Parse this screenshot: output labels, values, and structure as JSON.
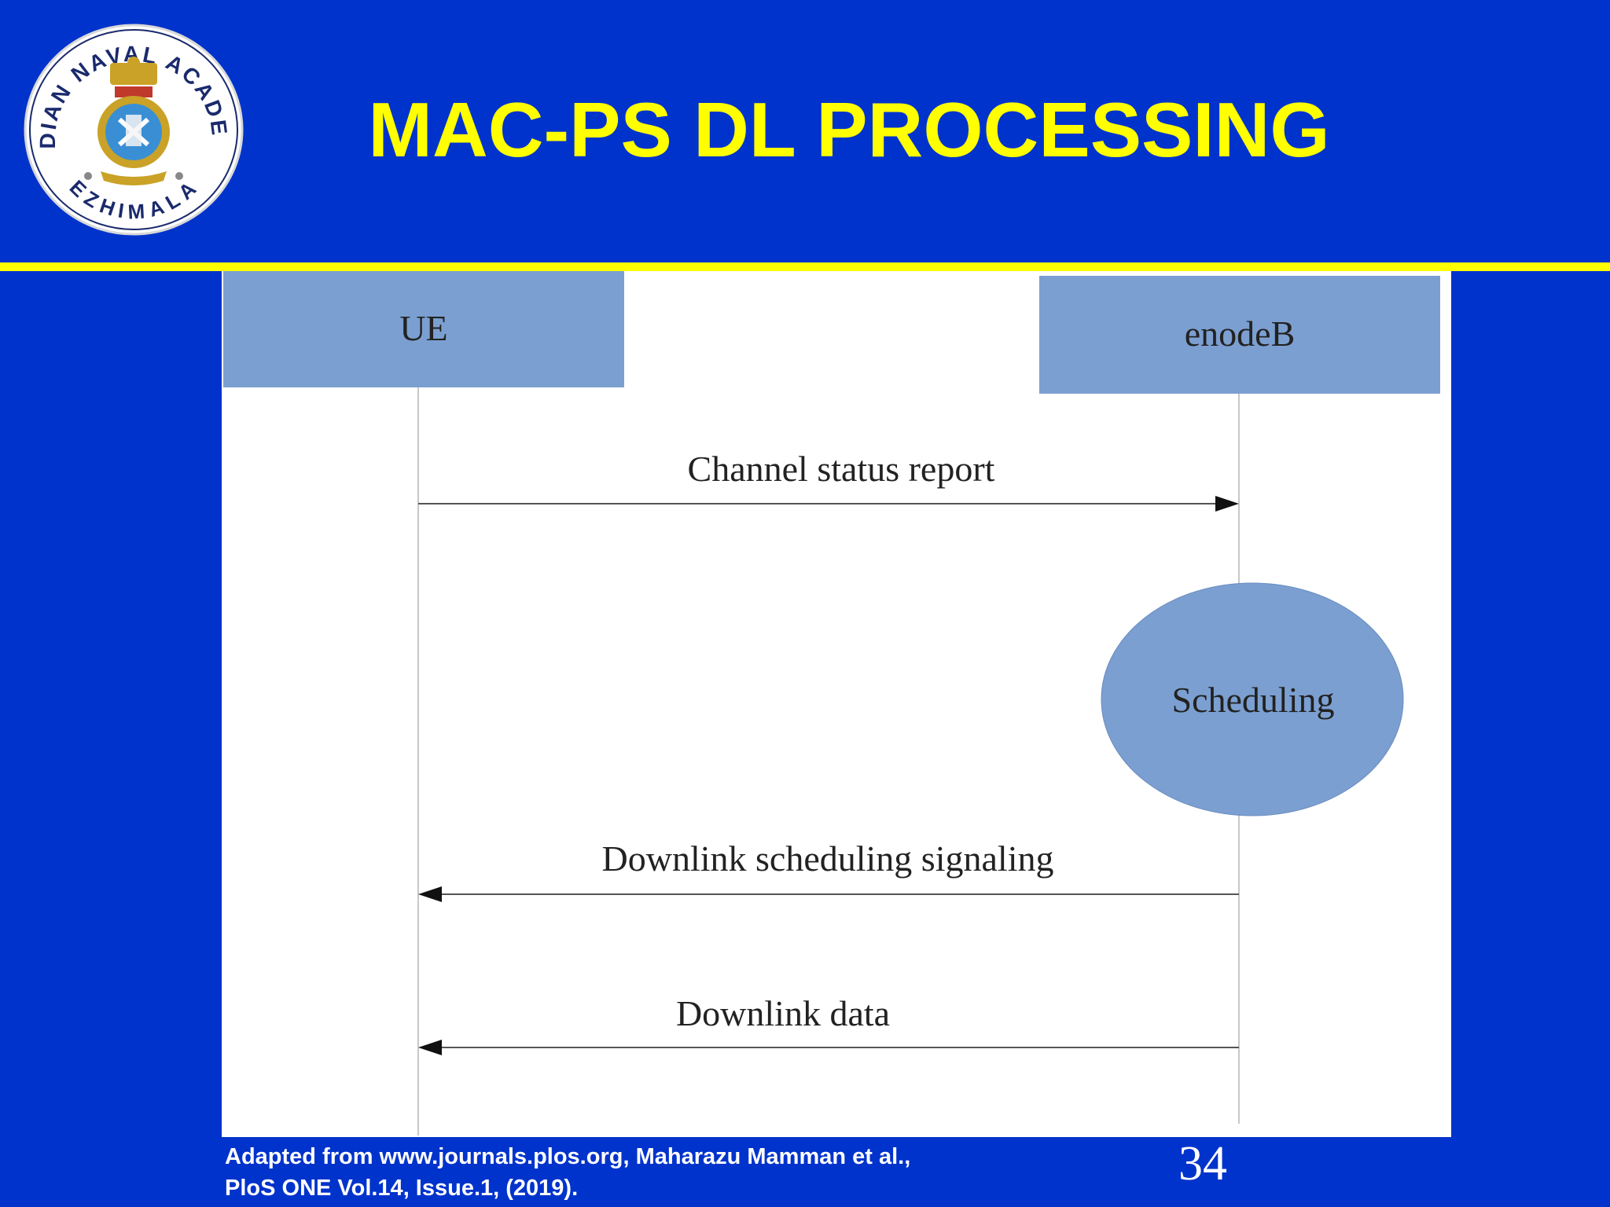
{
  "slide": {
    "title": "MAC-PS DL PROCESSING",
    "page_number": "34",
    "citation_line1": "Adapted from  www.journals.plos.org, Maharazu Mamman et al.,",
    "citation_line2": "PloS ONE Vol.14, Issue.1, (2019).",
    "colors": {
      "background": "#0033cc",
      "accent": "#ffff00",
      "box": "#7b9fd0"
    }
  },
  "logo": {
    "text_top": "INDIAN NAVAL ACADEMY",
    "text_bottom": "EZHIMALA",
    "icon": "naval-academy-crest-icon"
  },
  "diagram": {
    "participants": [
      {
        "id": "ue",
        "label": "UE"
      },
      {
        "id": "enodeb",
        "label": "enodeB"
      }
    ],
    "process": {
      "label": "Scheduling"
    },
    "messages": [
      {
        "label": "Channel status report",
        "from": "UE",
        "to": "enodeB"
      },
      {
        "label": "Downlink scheduling signaling",
        "from": "enodeB",
        "to": "UE"
      },
      {
        "label": "Downlink data",
        "from": "enodeB",
        "to": "UE"
      }
    ]
  }
}
